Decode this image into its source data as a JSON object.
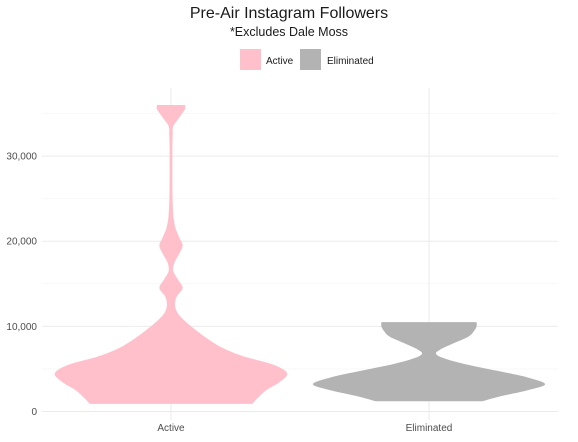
{
  "chart_data": {
    "type": "violin",
    "title": "Pre-Air Instagram Followers",
    "subtitle": "*Excludes Dale Moss",
    "xlabel": "",
    "ylabel": "",
    "categories": [
      "Active",
      "Eliminated"
    ],
    "ylim": [
      -1000,
      38000
    ],
    "yticks": [
      0,
      10000,
      20000,
      30000
    ],
    "ytick_labels": [
      "0",
      "10,000",
      "20,000",
      "30,000"
    ],
    "grid": true,
    "legend": {
      "position": "top",
      "entries": [
        {
          "label": "Active",
          "color": "#ffc0cb"
        },
        {
          "label": "Eliminated",
          "color": "#b3b3b3"
        }
      ]
    },
    "series": [
      {
        "category": "Active",
        "color": "#ffc0cb",
        "min": 900,
        "max": 36000,
        "density": [
          [
            900,
            0.7
          ],
          [
            1500,
            0.74
          ],
          [
            2500,
            0.82
          ],
          [
            3500,
            0.94
          ],
          [
            4500,
            1.0
          ],
          [
            5500,
            0.88
          ],
          [
            6500,
            0.62
          ],
          [
            7500,
            0.44
          ],
          [
            8500,
            0.32
          ],
          [
            9500,
            0.22
          ],
          [
            10500,
            0.13
          ],
          [
            11500,
            0.06
          ],
          [
            12500,
            0.035
          ],
          [
            13500,
            0.05
          ],
          [
            14500,
            0.1
          ],
          [
            15500,
            0.06
          ],
          [
            16500,
            0.02
          ],
          [
            17500,
            0.03
          ],
          [
            18500,
            0.07
          ],
          [
            19500,
            0.1
          ],
          [
            20500,
            0.07
          ],
          [
            21500,
            0.04
          ],
          [
            22500,
            0.025
          ],
          [
            23500,
            0.018
          ],
          [
            25000,
            0.014
          ],
          [
            27000,
            0.012
          ],
          [
            29000,
            0.012
          ],
          [
            31000,
            0.012
          ],
          [
            32500,
            0.015
          ],
          [
            33500,
            0.02
          ],
          [
            34500,
            0.07
          ],
          [
            35500,
            0.12
          ],
          [
            36000,
            0.12
          ]
        ]
      },
      {
        "category": "Eliminated",
        "color": "#b3b3b3",
        "min": 1200,
        "max": 10500,
        "density": [
          [
            1200,
            0.46
          ],
          [
            1800,
            0.62
          ],
          [
            2500,
            0.85
          ],
          [
            3200,
            1.0
          ],
          [
            4000,
            0.85
          ],
          [
            4800,
            0.58
          ],
          [
            5600,
            0.3
          ],
          [
            6300,
            0.12
          ],
          [
            6800,
            0.06
          ],
          [
            7300,
            0.1
          ],
          [
            8000,
            0.21
          ],
          [
            8800,
            0.34
          ],
          [
            9500,
            0.39
          ],
          [
            10000,
            0.41
          ],
          [
            10500,
            0.41
          ]
        ]
      }
    ]
  }
}
